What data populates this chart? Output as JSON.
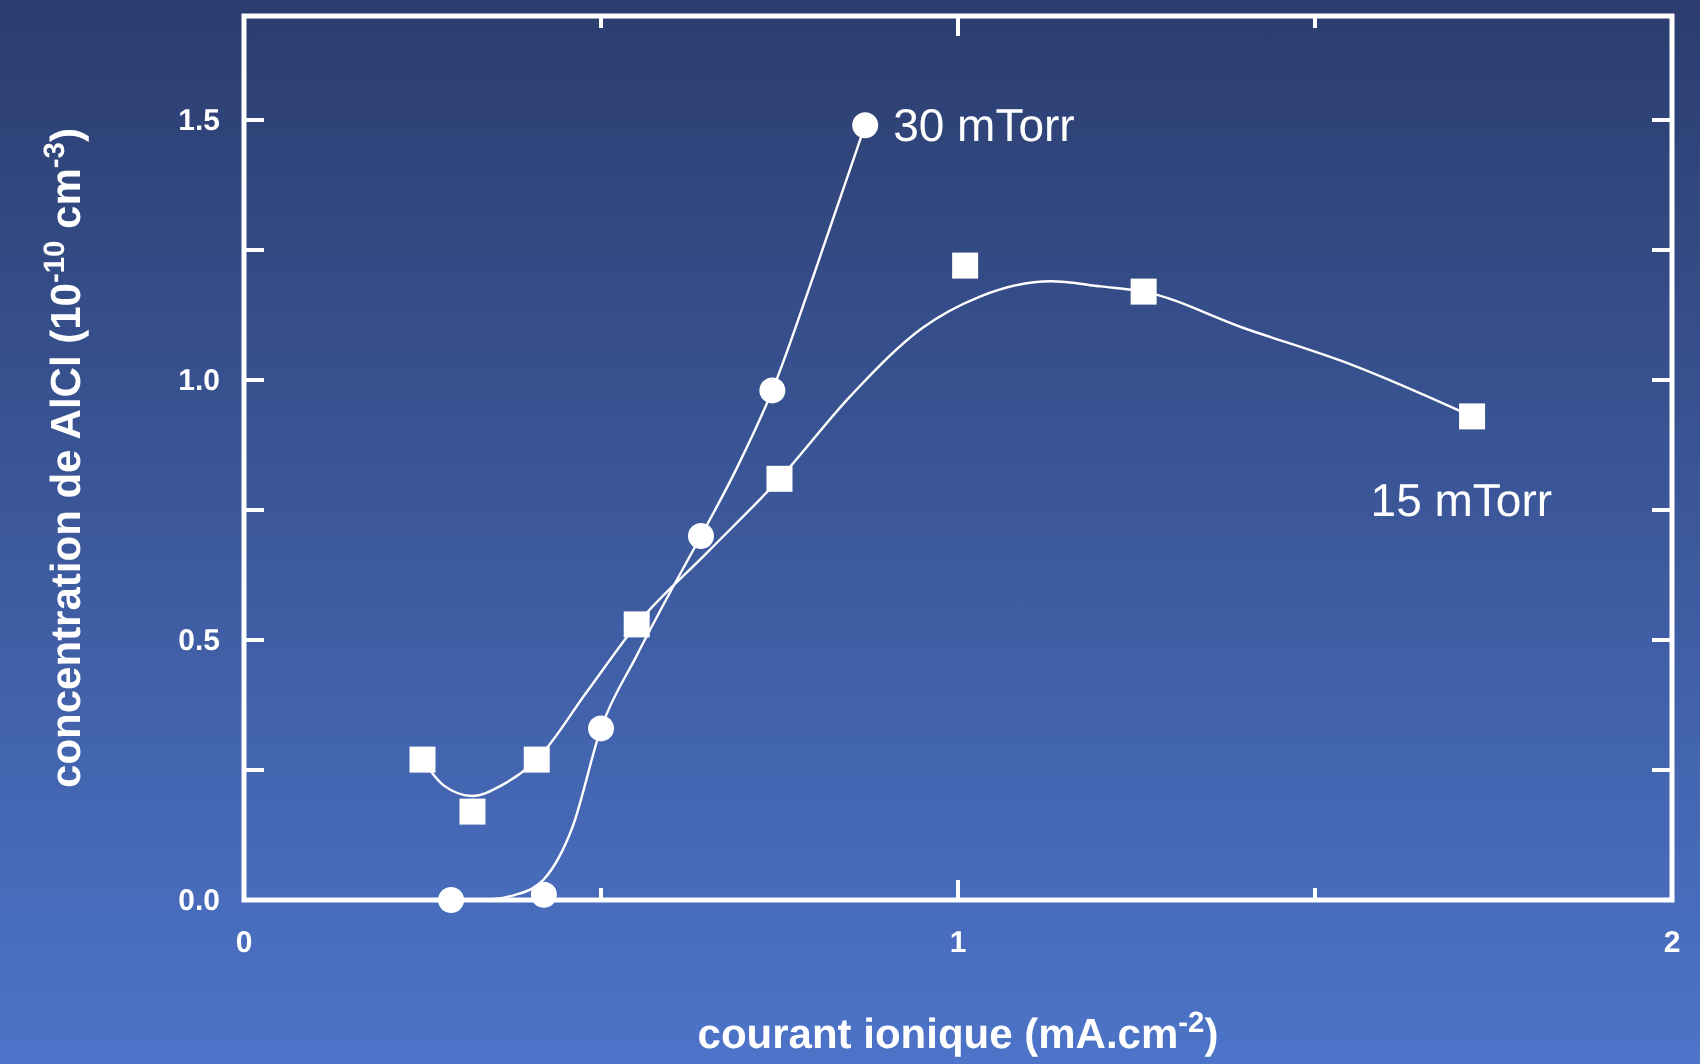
{
  "chart_data": {
    "type": "scatter",
    "xlabel": "courant ionique (mA.cm$^{-2}$)",
    "ylabel": "concentration de AlCl (10$^{-10}$ cm$^{-3}$)",
    "xlim": [
      0,
      2
    ],
    "ylim": [
      0,
      1.7
    ],
    "xticks": [
      0,
      {
        "value": 0.5,
        "label": null
      },
      1,
      {
        "value": 1.5,
        "label": null
      },
      2
    ],
    "yticks": [
      {
        "value": 0,
        "label": "0.0"
      },
      {
        "value": 0.25,
        "label": null
      },
      {
        "value": 0.5,
        "label": "0.5"
      },
      {
        "value": 0.75,
        "label": null
      },
      {
        "value": 1,
        "label": "1.0"
      },
      {
        "value": 1.25,
        "label": null
      },
      {
        "value": 1.5,
        "label": "1.5"
      }
    ],
    "grid": false,
    "series": [
      {
        "name": "30 mTorr",
        "color": "#ffffff",
        "marker": "circle",
        "x": [
          0.29,
          0.42,
          0.5,
          0.64,
          0.74,
          0.87
        ],
        "values": [
          0,
          0.01,
          0.33,
          0.7,
          0.98,
          1.49
        ]
      },
      {
        "name": "15 mTorr",
        "color": "#ffffff",
        "marker": "square",
        "x": [
          0.25,
          0.32,
          0.41,
          0.55,
          0.75,
          1.01,
          1.26,
          1.72
        ],
        "values": [
          0.27,
          0.17,
          0.27,
          0.53,
          0.81,
          1.22,
          1.17,
          0.93
        ]
      },
      {
        "type": "line",
        "color": "#ffffff",
        "marker": "none",
        "x": [
          0.29,
          0.33,
          0.38,
          0.42,
          0.46,
          0.5,
          0.55,
          0.6,
          0.64,
          0.69,
          0.74,
          0.8,
          0.87
        ],
        "values": [
          0,
          0,
          0.01,
          0.04,
          0.14,
          0.33,
          0.47,
          0.6,
          0.7,
          0.83,
          0.98,
          1.21,
          1.49
        ]
      },
      {
        "type": "line",
        "color": "#ffffff",
        "marker": "none",
        "x": [
          0.25,
          0.28,
          0.32,
          0.36,
          0.41,
          0.48,
          0.55,
          0.65,
          0.75,
          0.85,
          0.95,
          1.03,
          1.13,
          1.2,
          1.26,
          1.4,
          1.55,
          1.72
        ],
        "values": [
          0.27,
          0.22,
          0.2,
          0.22,
          0.27,
          0.4,
          0.53,
          0.67,
          0.81,
          0.97,
          1.1,
          1.16,
          1.19,
          1.18,
          1.17,
          1.1,
          1.03,
          0.93
        ]
      }
    ]
  }
}
